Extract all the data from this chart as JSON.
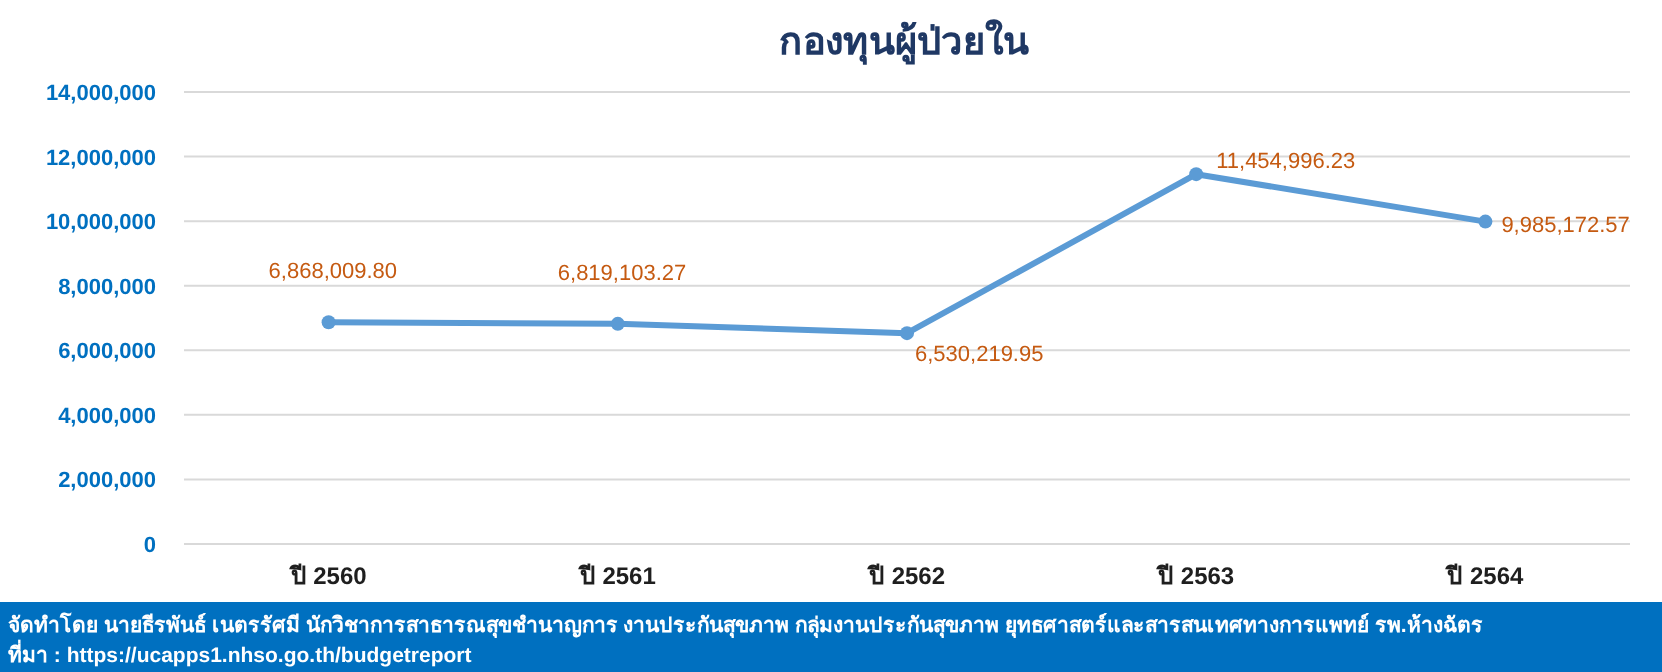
{
  "chart_data": {
    "type": "line",
    "title": "กองทุนผู้ป่วยใน",
    "categories": [
      "ปี 2560",
      "ปี 2561",
      "ปี 2562",
      "ปี 2563",
      "ปี 2564"
    ],
    "series": [
      {
        "color": "#5b9bd5",
        "values": [
          6868009.8,
          6819103.27,
          6530219.95,
          11454996.23,
          9985172.57
        ],
        "value_labels": [
          "6,868,009.80",
          "6,819,103.27",
          "6,530,219.95",
          "11,454,996.23",
          "9,985,172.57"
        ]
      }
    ],
    "ylim": [
      0,
      14000000
    ],
    "yticks": [
      0,
      {
        "value": 2000000,
        "label": "2,000,000"
      },
      {
        "value": 4000000,
        "label": "4,000,000"
      },
      {
        "value": 6000000,
        "label": "6,000,000"
      },
      {
        "value": 8000000,
        "label": "8,000,000"
      },
      {
        "value": 10000000,
        "label": "10,000,000"
      },
      {
        "value": 12000000,
        "label": "12,000,000"
      },
      {
        "value": 14000000,
        "label": "14,000,000"
      }
    ],
    "grid": "y",
    "marker": "circle",
    "line_style": "solid",
    "annotations": [
      "จัดทำโดย นายธีรพันธ์ เนตรรัศมี นักวิชาการสาธารณสุขชำนาญการ งานประกันสุขภาพ กลุ่มงานประกันสุขภาพ ยุทธศาสตร์และสารสนเทศทางการแพทย์ รพ.ห้างฉัตร",
      "ที่มา : https://ucapps1.nhso.go.th/budgetreport"
    ]
  }
}
